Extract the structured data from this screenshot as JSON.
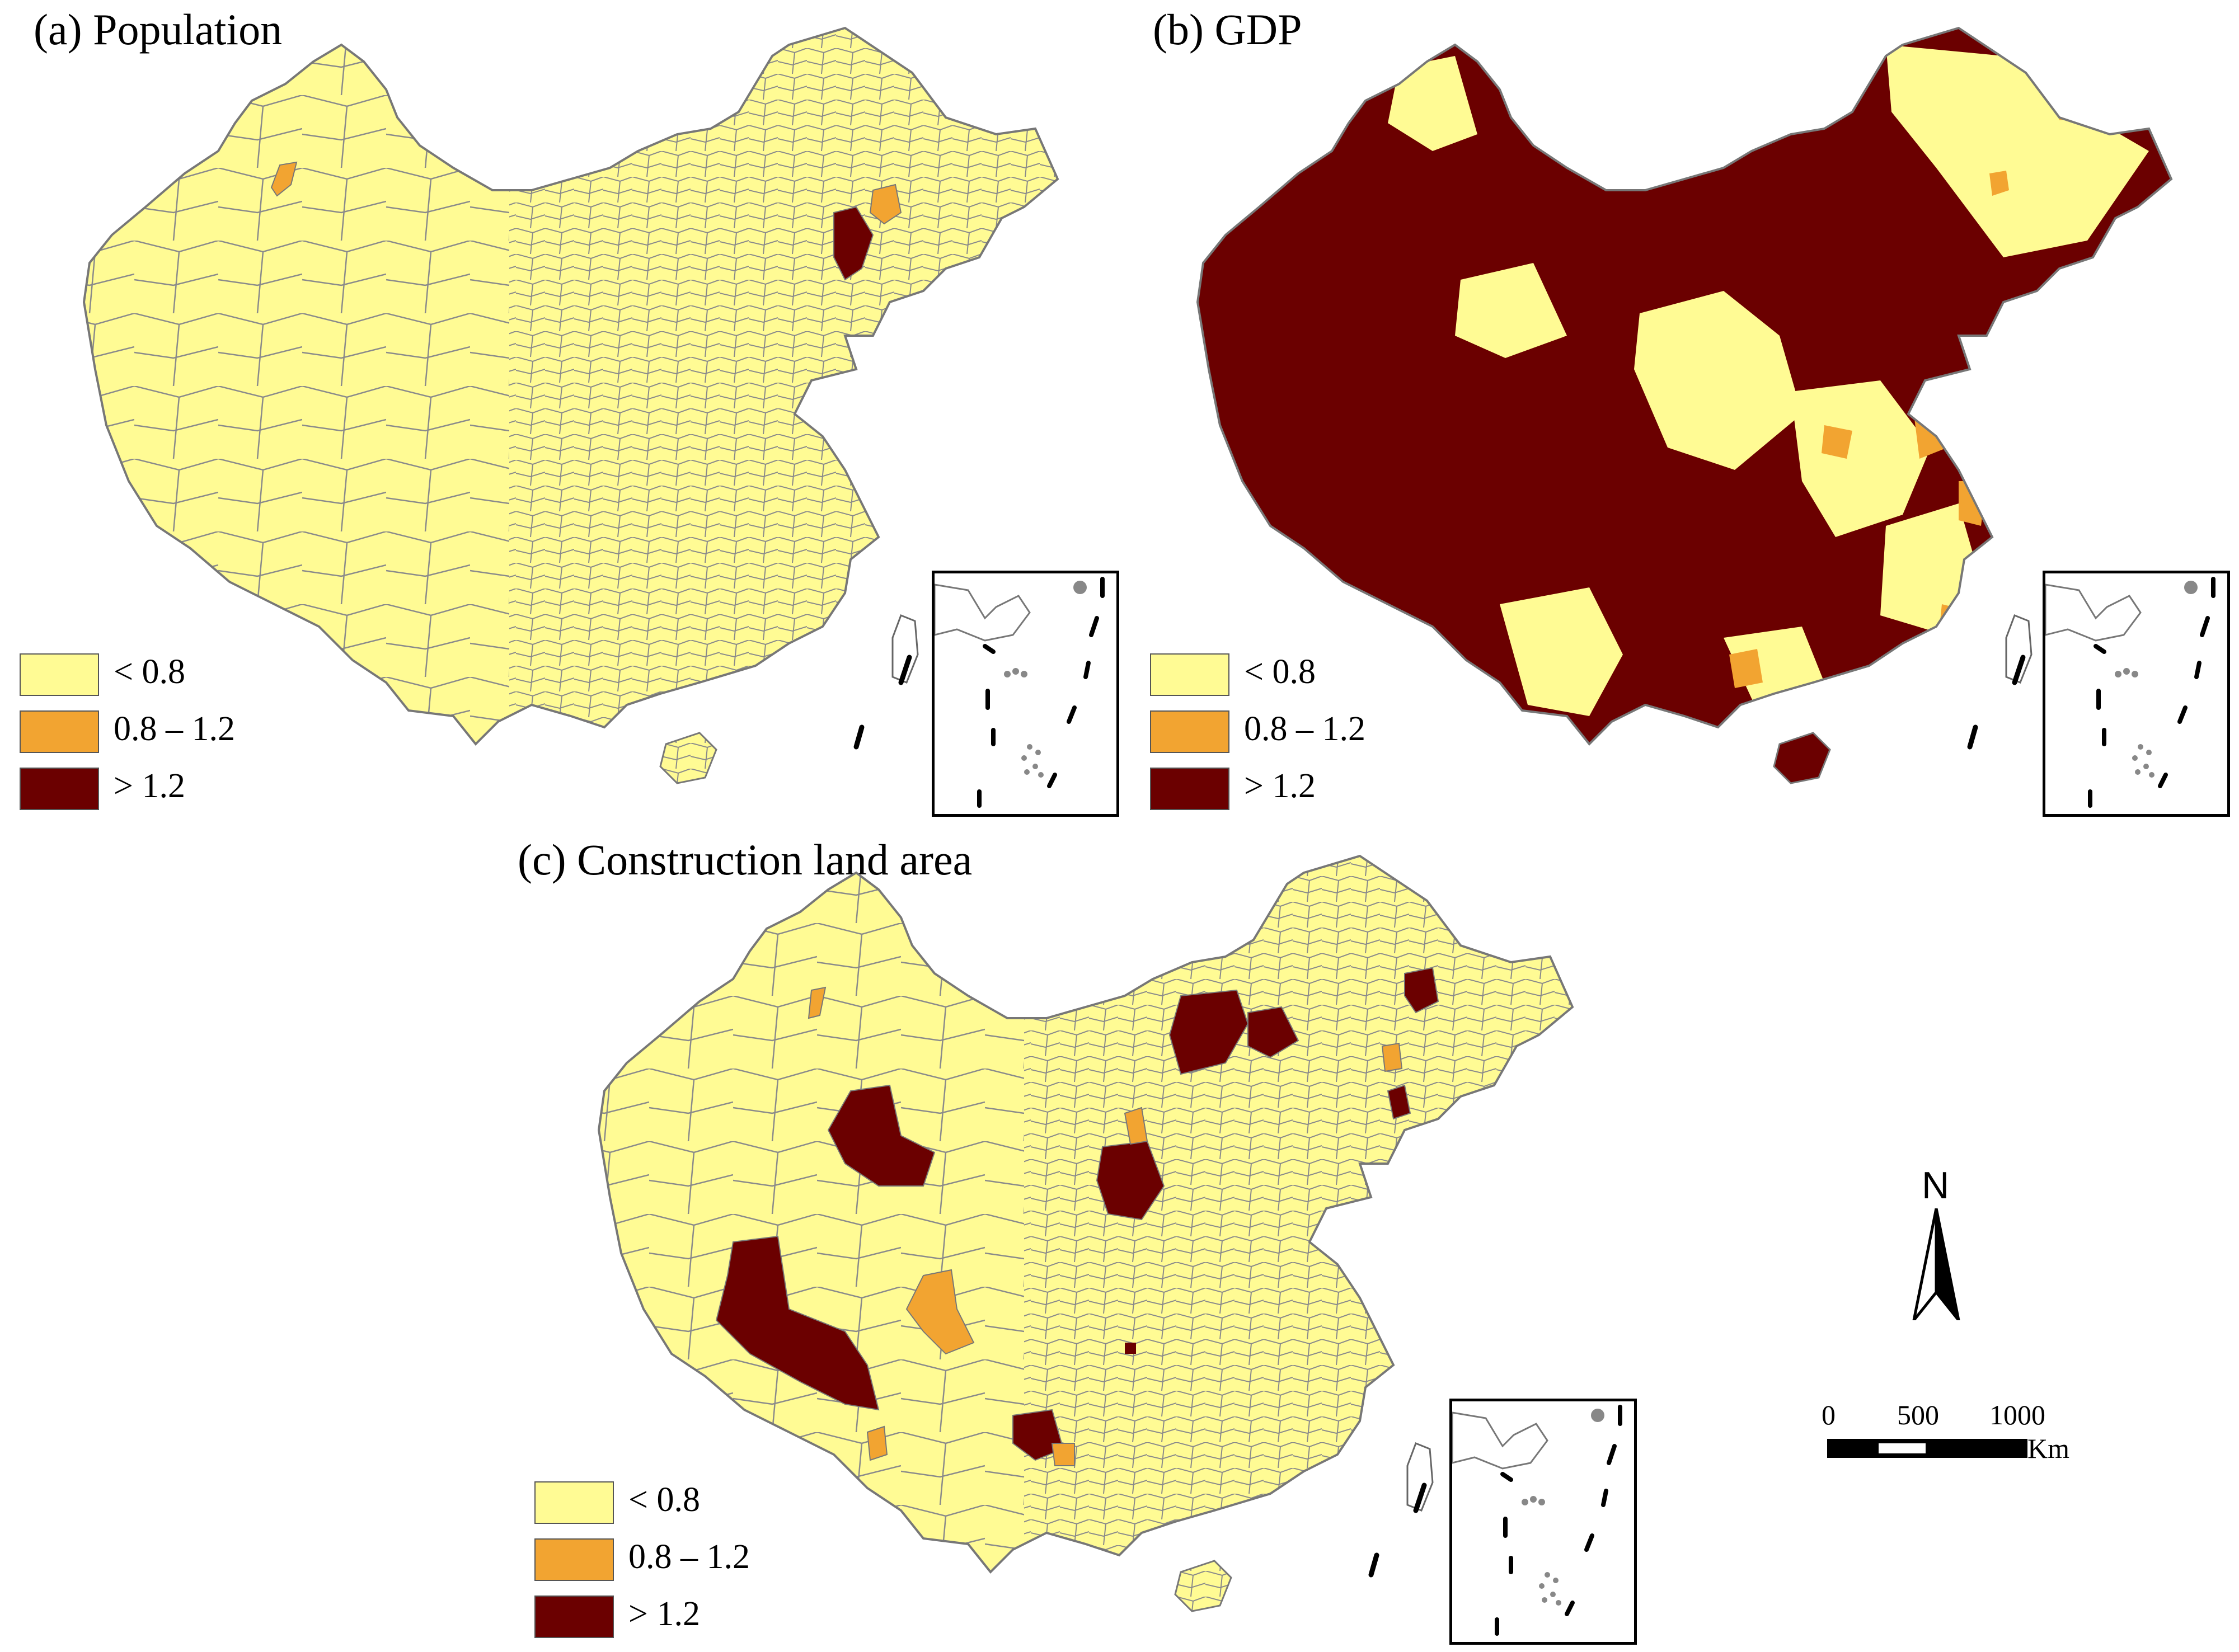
{
  "colors": {
    "low": "#FFFB94",
    "mid": "#F2A431",
    "high": "#6B0000",
    "border": "#777777",
    "island": "#8a8a8a"
  },
  "legend": {
    "items": [
      {
        "label": "< 0.8",
        "class": "low"
      },
      {
        "label": "0.8 – 1.2",
        "class": "mid"
      },
      {
        "label": "> 1.2",
        "class": "high"
      }
    ]
  },
  "panels": [
    {
      "id": "a",
      "title": "(a) Population"
    },
    {
      "id": "b",
      "title": "(b) GDP"
    },
    {
      "id": "c",
      "title": "(c) Construction land area"
    }
  ],
  "north_arrow": {
    "label": "N"
  },
  "scale_bar": {
    "ticks": [
      "0",
      "500",
      "1000"
    ],
    "unit": "Km"
  }
}
